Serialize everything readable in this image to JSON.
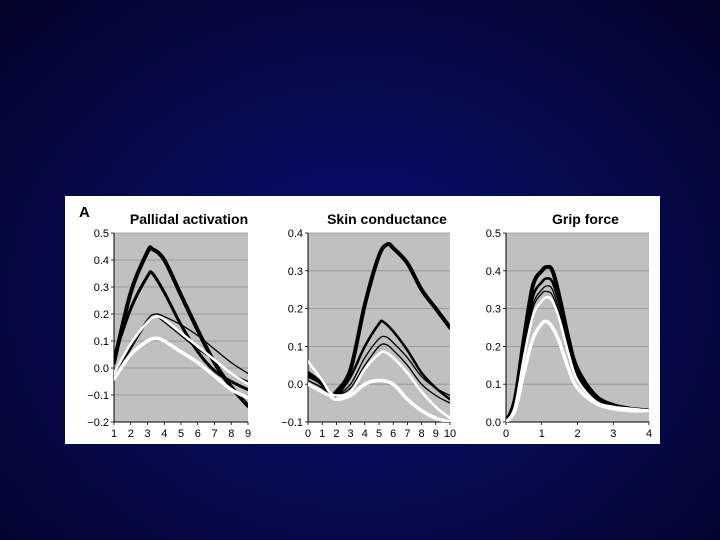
{
  "figure": {
    "panel_label": "A"
  },
  "colors": {
    "background": "#060a52",
    "plot_bg": "#c0c0c0",
    "grid": "#8f8f8f"
  },
  "chart_data": [
    {
      "type": "line",
      "title": "Pallidal activation",
      "xlim": [
        1,
        9
      ],
      "ylim": [
        -0.2,
        0.5
      ],
      "x_ticks": [
        "1",
        "2",
        "3",
        "4",
        "5",
        "6",
        "7",
        "8",
        "9"
      ],
      "y_ticks": [
        "0.5",
        "0.4",
        "0.3",
        "0.2",
        "0.1",
        "0.0",
        "−0.1",
        "−0.2"
      ],
      "y_tick_values": [
        0.5,
        0.4,
        0.3,
        0.2,
        0.1,
        0.0,
        -0.1,
        -0.2
      ],
      "grid": true,
      "series": [
        {
          "color": "#000000",
          "width": 4,
          "x": [
            1,
            2,
            3,
            3.3,
            4,
            5,
            6,
            7,
            8,
            9
          ],
          "y": [
            0.02,
            0.28,
            0.43,
            0.44,
            0.4,
            0.27,
            0.14,
            0.02,
            -0.07,
            -0.14
          ]
        },
        {
          "color": "#000000",
          "width": 3,
          "x": [
            1,
            2,
            3,
            3.3,
            4,
            5,
            6,
            7,
            8,
            9
          ],
          "y": [
            0.04,
            0.22,
            0.34,
            0.35,
            0.28,
            0.16,
            0.06,
            -0.01,
            -0.05,
            -0.08
          ]
        },
        {
          "color": "#000000",
          "width": 1.3,
          "x": [
            1,
            2,
            3,
            3.5,
            4,
            5,
            6,
            7,
            8,
            9
          ],
          "y": [
            -0.03,
            0.08,
            0.18,
            0.2,
            0.19,
            0.16,
            0.12,
            0.07,
            0.02,
            -0.02
          ]
        },
        {
          "color": "#000000",
          "width": 1.3,
          "x": [
            1,
            2,
            3,
            3.5,
            4,
            5,
            6,
            7,
            8,
            9
          ],
          "y": [
            -0.04,
            0.07,
            0.17,
            0.19,
            0.17,
            0.12,
            0.07,
            0.03,
            -0.02,
            -0.05
          ]
        },
        {
          "color": "#ffffff",
          "width": 2.5,
          "x": [
            1,
            2,
            3,
            3.5,
            4,
            5,
            6,
            7,
            8,
            9
          ],
          "y": [
            -0.02,
            0.09,
            0.17,
            0.19,
            0.18,
            0.13,
            0.08,
            0.03,
            -0.02,
            -0.06
          ]
        },
        {
          "color": "#ffffff",
          "width": 3.5,
          "x": [
            1,
            2,
            3,
            3.5,
            4,
            5,
            6,
            7,
            8,
            9
          ],
          "y": [
            -0.04,
            0.05,
            0.1,
            0.11,
            0.1,
            0.06,
            0.02,
            -0.03,
            -0.08,
            -0.11
          ]
        }
      ]
    },
    {
      "type": "line",
      "title": "Skin conductance",
      "xlim": [
        0,
        10
      ],
      "ylim": [
        -0.1,
        0.4
      ],
      "x_ticks": [
        "0",
        "1",
        "2",
        "3",
        "4",
        "5",
        "6",
        "7",
        "8",
        "9",
        "10"
      ],
      "y_ticks": [
        "0.4",
        "0.3",
        "0.2",
        "0.1",
        "0.0",
        "−0.1"
      ],
      "y_tick_values": [
        0.4,
        0.3,
        0.2,
        0.1,
        0.0,
        -0.1
      ],
      "grid": true,
      "series": [
        {
          "color": "#000000",
          "width": 4,
          "x": [
            0,
            1,
            1.5,
            2,
            3,
            4,
            5,
            5.6,
            6,
            7,
            8,
            9,
            10
          ],
          "y": [
            0.03,
            0.0,
            -0.03,
            -0.02,
            0.04,
            0.21,
            0.34,
            0.37,
            0.36,
            0.32,
            0.25,
            0.2,
            0.15
          ]
        },
        {
          "color": "#000000",
          "width": 2.5,
          "x": [
            0,
            1,
            1.5,
            2,
            3,
            4,
            5,
            5.3,
            6,
            7,
            8,
            9,
            10
          ],
          "y": [
            0.02,
            0.0,
            -0.03,
            -0.03,
            0.02,
            0.1,
            0.16,
            0.165,
            0.14,
            0.09,
            0.03,
            -0.01,
            -0.04
          ]
        },
        {
          "color": "#000000",
          "width": 1.3,
          "x": [
            0,
            1,
            1.5,
            2,
            3,
            4,
            5,
            5.5,
            6,
            7,
            8,
            9,
            10
          ],
          "y": [
            0.01,
            -0.01,
            -0.03,
            -0.03,
            0.0,
            0.07,
            0.12,
            0.125,
            0.11,
            0.07,
            0.02,
            -0.01,
            -0.03
          ]
        },
        {
          "color": "#000000",
          "width": 1.3,
          "x": [
            0,
            1,
            1.5,
            2,
            3,
            4,
            5,
            5.5,
            6,
            7,
            8,
            9,
            10
          ],
          "y": [
            0.01,
            -0.01,
            -0.03,
            -0.03,
            -0.01,
            0.05,
            0.1,
            0.105,
            0.09,
            0.05,
            0.0,
            -0.03,
            -0.05
          ]
        },
        {
          "color": "#ffffff",
          "width": 2.5,
          "x": [
            0,
            1,
            1.5,
            2,
            3,
            4,
            5,
            5.4,
            6,
            7,
            8,
            9,
            10
          ],
          "y": [
            0.06,
            0.01,
            -0.02,
            -0.03,
            -0.02,
            0.04,
            0.08,
            0.085,
            0.07,
            0.03,
            -0.02,
            -0.06,
            -0.09
          ]
        },
        {
          "color": "#ffffff",
          "width": 3.5,
          "x": [
            0,
            1,
            1.5,
            2,
            3,
            4,
            5,
            6,
            7,
            8,
            9,
            10
          ],
          "y": [
            0.0,
            -0.02,
            -0.03,
            -0.04,
            -0.03,
            0.0,
            0.01,
            0.0,
            -0.04,
            -0.07,
            -0.09,
            -0.1
          ]
        }
      ]
    },
    {
      "type": "line",
      "title": "Grip force",
      "xlim": [
        0,
        4
      ],
      "ylim": [
        0.0,
        0.5
      ],
      "x_ticks": [
        "0",
        "1",
        "2",
        "3",
        "4"
      ],
      "y_ticks": [
        "0.5",
        "0.4",
        "0.3",
        "0.2",
        "0.1",
        "0.0"
      ],
      "y_tick_values": [
        0.5,
        0.4,
        0.3,
        0.2,
        0.1,
        0.0
      ],
      "grid": true,
      "series": [
        {
          "color": "#000000",
          "width": 4,
          "x": [
            0,
            0.25,
            0.5,
            0.75,
            1,
            1.15,
            1.3,
            1.5,
            1.75,
            2,
            2.5,
            3,
            3.5,
            4
          ],
          "y": [
            0.0,
            0.06,
            0.22,
            0.36,
            0.4,
            0.41,
            0.4,
            0.33,
            0.22,
            0.14,
            0.07,
            0.045,
            0.035,
            0.03
          ]
        },
        {
          "color": "#000000",
          "width": 2.5,
          "x": [
            0,
            0.25,
            0.5,
            0.75,
            1,
            1.15,
            1.3,
            1.5,
            1.75,
            2,
            2.5,
            3,
            3.5,
            4
          ],
          "y": [
            0.0,
            0.05,
            0.2,
            0.33,
            0.37,
            0.38,
            0.37,
            0.31,
            0.21,
            0.13,
            0.065,
            0.045,
            0.035,
            0.03
          ]
        },
        {
          "color": "#000000",
          "width": 1.3,
          "x": [
            0,
            0.25,
            0.5,
            0.75,
            1,
            1.15,
            1.3,
            1.5,
            1.75,
            2,
            2.5,
            3,
            3.5,
            4
          ],
          "y": [
            0.0,
            0.05,
            0.19,
            0.31,
            0.35,
            0.36,
            0.35,
            0.29,
            0.2,
            0.12,
            0.06,
            0.04,
            0.035,
            0.03
          ]
        },
        {
          "color": "#000000",
          "width": 1.3,
          "x": [
            0,
            0.25,
            0.5,
            0.75,
            1,
            1.15,
            1.3,
            1.5,
            1.75,
            2,
            2.5,
            3,
            3.5,
            4
          ],
          "y": [
            0.0,
            0.045,
            0.18,
            0.3,
            0.34,
            0.345,
            0.335,
            0.28,
            0.19,
            0.12,
            0.06,
            0.04,
            0.035,
            0.03
          ]
        },
        {
          "color": "#ffffff",
          "width": 2.5,
          "x": [
            0,
            0.25,
            0.5,
            0.75,
            1,
            1.15,
            1.3,
            1.5,
            1.75,
            2,
            2.5,
            3,
            3.5,
            4
          ],
          "y": [
            0.0,
            0.04,
            0.17,
            0.28,
            0.32,
            0.33,
            0.32,
            0.27,
            0.18,
            0.11,
            0.055,
            0.04,
            0.035,
            0.03
          ]
        },
        {
          "color": "#ffffff",
          "width": 3.5,
          "x": [
            0,
            0.25,
            0.5,
            0.75,
            1,
            1.15,
            1.3,
            1.5,
            1.75,
            2,
            2.5,
            3,
            3.5,
            4
          ],
          "y": [
            0.0,
            0.03,
            0.13,
            0.22,
            0.26,
            0.265,
            0.25,
            0.21,
            0.14,
            0.09,
            0.05,
            0.035,
            0.03,
            0.03
          ]
        }
      ]
    }
  ]
}
